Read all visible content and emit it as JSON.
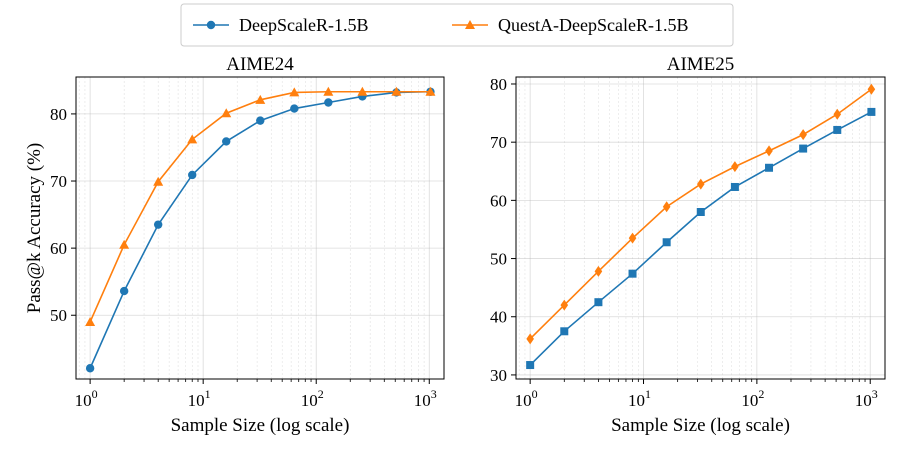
{
  "legend": {
    "entries": [
      {
        "name": "DeepScaleR-1.5B",
        "color": "#1f77b4",
        "marker": "circle"
      },
      {
        "name": "QuestA-DeepScaleR-1.5B",
        "color": "#ff7f0e",
        "marker": "triangle"
      }
    ],
    "placement": "top-center"
  },
  "chart_data": [
    {
      "type": "line",
      "title": "AIME24",
      "xlabel": "Sample Size (log scale)",
      "ylabel": "Pass@k Accuracy (%)",
      "xscale": "log",
      "xlim": [
        0.75,
        1350
      ],
      "ylim": [
        40.5,
        85.5
      ],
      "yticks": [
        50,
        60,
        70,
        80
      ],
      "xticks": [
        1,
        10,
        100,
        1000
      ],
      "xtick_labels": [
        {
          "base": "10",
          "exp": "0"
        },
        {
          "base": "10",
          "exp": "1"
        },
        {
          "base": "10",
          "exp": "2"
        },
        {
          "base": "10",
          "exp": "3"
        }
      ],
      "grid": true,
      "x": [
        1,
        2,
        4,
        8,
        16,
        32,
        64,
        128,
        256,
        512,
        1024
      ],
      "series": [
        {
          "name": "DeepScaleR-1.5B",
          "color": "#1f77b4",
          "marker": "circle",
          "values": [
            42.1,
            53.6,
            63.5,
            70.9,
            75.9,
            79.0,
            80.8,
            81.7,
            82.6,
            83.2,
            83.3
          ]
        },
        {
          "name": "QuestA-DeepScaleR-1.5B",
          "color": "#ff7f0e",
          "marker": "triangle",
          "values": [
            49.0,
            60.5,
            69.9,
            76.2,
            80.1,
            82.1,
            83.2,
            83.3,
            83.3,
            83.3,
            83.3
          ]
        }
      ]
    },
    {
      "type": "line",
      "title": "AIME25",
      "xlabel": "Sample Size (log scale)",
      "ylabel": "",
      "xscale": "log",
      "xlim": [
        0.75,
        1350
      ],
      "ylim": [
        29.3,
        81.2
      ],
      "yticks": [
        30,
        40,
        50,
        60,
        70,
        80
      ],
      "xticks": [
        1,
        10,
        100,
        1000
      ],
      "xtick_labels": [
        {
          "base": "10",
          "exp": "0"
        },
        {
          "base": "10",
          "exp": "1"
        },
        {
          "base": "10",
          "exp": "2"
        },
        {
          "base": "10",
          "exp": "3"
        }
      ],
      "grid": true,
      "x": [
        1,
        2,
        4,
        8,
        16,
        32,
        64,
        128,
        256,
        512,
        1024
      ],
      "series": [
        {
          "name": "DeepScaleR-1.5B",
          "color": "#1f77b4",
          "marker": "square",
          "values": [
            31.7,
            37.5,
            42.5,
            47.4,
            52.8,
            58.0,
            62.3,
            65.6,
            68.9,
            72.1,
            75.2
          ]
        },
        {
          "name": "QuestA-DeepScaleR-1.5B",
          "color": "#ff7f0e",
          "marker": "diamond",
          "values": [
            36.2,
            42.0,
            47.8,
            53.5,
            58.9,
            62.8,
            65.8,
            68.5,
            71.3,
            74.8,
            79.1
          ]
        }
      ]
    }
  ]
}
